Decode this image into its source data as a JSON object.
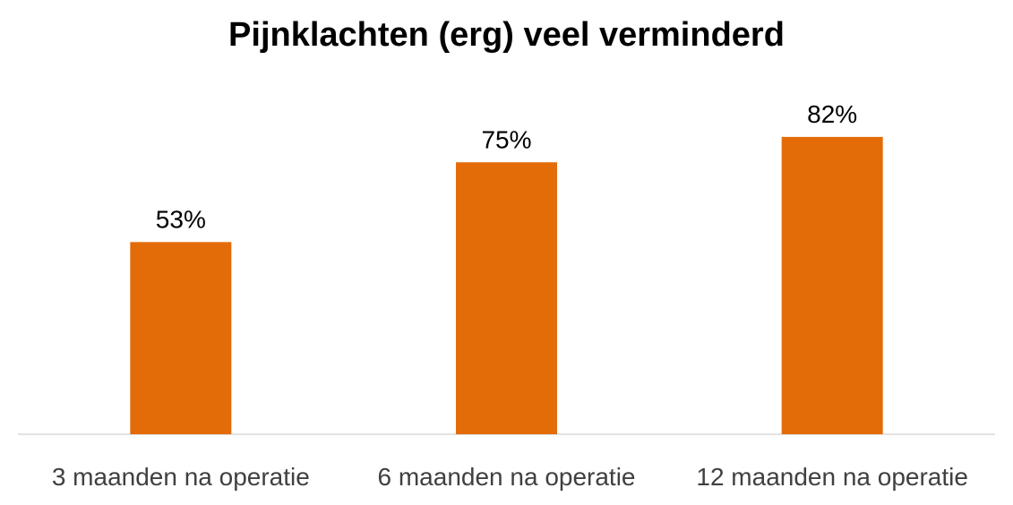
{
  "chart_data": {
    "type": "bar",
    "title": "Pijnklachten (erg) veel verminderd",
    "categories": [
      "3 maanden na operatie",
      "6 maanden na operatie",
      "12 maanden na operatie"
    ],
    "values": [
      53,
      75,
      82
    ],
    "value_labels": [
      "53%",
      "75%",
      "82%"
    ],
    "bar_color": "#E36C09",
    "axis_color": "#D9D9D9",
    "ylim": [
      0,
      100
    ],
    "grid": false,
    "legend": "none"
  }
}
